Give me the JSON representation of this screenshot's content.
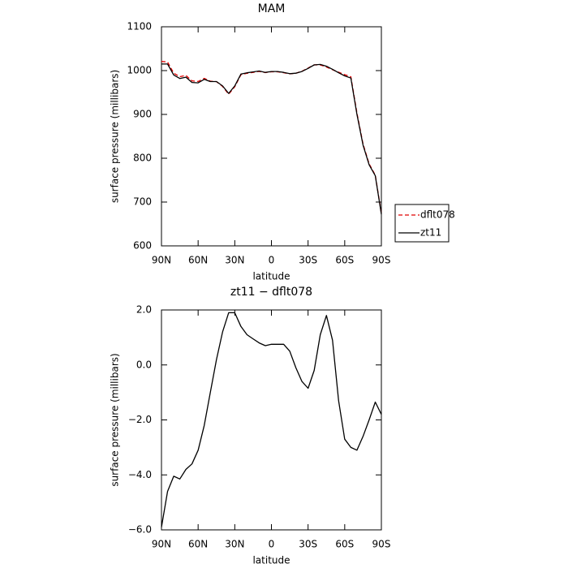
{
  "chart_data": [
    {
      "type": "line",
      "title": "MAM",
      "xlabel": "latitude",
      "ylabel": "surface pressure (millibars)",
      "x": [
        90,
        85,
        80,
        75,
        70,
        65,
        60,
        55,
        50,
        45,
        40,
        35,
        30,
        25,
        20,
        15,
        10,
        5,
        0,
        -5,
        -10,
        -15,
        -20,
        -25,
        -30,
        -35,
        -40,
        -45,
        -50,
        -55,
        -60,
        -65,
        -70,
        -75,
        -80,
        -85,
        -90
      ],
      "series": [
        {
          "name": "dflt078",
          "color": "#e00000",
          "style": "dashed",
          "values": [
            1020.9,
            1019.6,
            994,
            986.2,
            988.8,
            976.6,
            975.1,
            982.2,
            976,
            974.8,
            963.8,
            946.1,
            963.1,
            990.6,
            993.9,
            996,
            998.2,
            995.3,
            997.2,
            997.2,
            995.2,
            992.5,
            994.1,
            998.6,
            1005.9,
            1013.2,
            1012.9,
            1008.2,
            1002.1,
            996.3,
            990.7,
            986,
            903.1,
            832.6,
            787,
            761.4,
            673.8
          ]
        },
        {
          "name": "zt11",
          "color": "#000000",
          "style": "solid",
          "values": [
            1015,
            1015,
            990,
            982,
            985,
            973,
            972,
            980,
            975,
            975,
            965,
            948,
            965,
            992,
            995,
            997,
            999,
            996,
            998,
            998,
            996,
            993,
            994,
            998,
            1005,
            1013,
            1014,
            1010,
            1003,
            995,
            988,
            983,
            900,
            830,
            785,
            760,
            672
          ]
        }
      ],
      "xlim": [
        90,
        -90
      ],
      "xticks": [
        {
          "value": 90,
          "label": "90N"
        },
        {
          "value": 60,
          "label": "60N"
        },
        {
          "value": 30,
          "label": "30N"
        },
        0,
        {
          "value": -30,
          "label": "30S"
        },
        {
          "value": -60,
          "label": "60S"
        },
        {
          "value": -90,
          "label": "90S"
        }
      ],
      "ylim": [
        600,
        1100
      ],
      "yticks": [
        600,
        700,
        800,
        900,
        1000,
        1100
      ],
      "legend": "outside-right"
    },
    {
      "type": "line",
      "title": "zt11 − dflt078",
      "xlabel": "latitude",
      "ylabel": "surface pressure (millibars)",
      "x": [
        90,
        85,
        80,
        75,
        70,
        65,
        60,
        55,
        50,
        45,
        40,
        35,
        30,
        25,
        20,
        15,
        10,
        5,
        0,
        -5,
        -10,
        -15,
        -20,
        -25,
        -30,
        -35,
        -40,
        -45,
        -50,
        -55,
        -60,
        -65,
        -70,
        -75,
        -80,
        -85,
        -90
      ],
      "values": [
        -5.9,
        -4.6,
        -4.05,
        -4.15,
        -3.8,
        -3.6,
        -3.1,
        -2.2,
        -1.0,
        0.2,
        1.2,
        1.9,
        1.9,
        1.4,
        1.1,
        0.95,
        0.8,
        0.7,
        0.75,
        0.75,
        0.75,
        0.5,
        -0.1,
        -0.6,
        -0.85,
        -0.2,
        1.1,
        1.8,
        0.9,
        -1.3,
        -2.7,
        -3.0,
        -3.1,
        -2.6,
        -2.0,
        -1.35,
        -1.8
      ],
      "color": "#000000",
      "xlim": [
        90,
        -90
      ],
      "xticks": [
        {
          "value": 90,
          "label": "90N"
        },
        {
          "value": 60,
          "label": "60N"
        },
        {
          "value": 30,
          "label": "30N"
        },
        0,
        {
          "value": -30,
          "label": "30S"
        },
        {
          "value": -60,
          "label": "60S"
        },
        {
          "value": -90,
          "label": "90S"
        }
      ],
      "ylim": [
        -6,
        2
      ],
      "yticks": [
        {
          "value": -6,
          "label": "−6.0"
        },
        {
          "value": -4,
          "label": "−4.0"
        },
        {
          "value": -2,
          "label": "−2.0"
        },
        {
          "value": 0,
          "label": "0.0"
        },
        {
          "value": 2,
          "label": "2.0"
        }
      ]
    }
  ]
}
